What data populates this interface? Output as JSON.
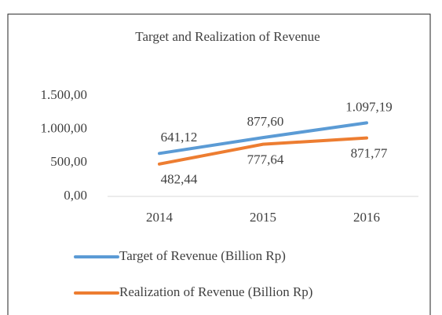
{
  "chart_data": {
    "type": "line",
    "title": "Target and Realization of Revenue",
    "categories": [
      "2014",
      "2015",
      "2016"
    ],
    "series": [
      {
        "name": "Target of Revenue (Billion Rp)",
        "color": "#5b9bd5",
        "values": [
          641.12,
          877.6,
          1097.19
        ],
        "value_labels": [
          "641,12",
          "877,60",
          "1.097,19"
        ]
      },
      {
        "name": "Realization of Revenue (Billion Rp)",
        "color": "#ed7d31",
        "values": [
          482.44,
          777.64,
          871.77
        ],
        "value_labels": [
          "482,44",
          "777,64",
          "871,77"
        ]
      }
    ],
    "ylim": [
      0,
      1500
    ],
    "yticks": [
      {
        "value": 0,
        "label": "0,00"
      },
      {
        "value": 500,
        "label": "500,00"
      },
      {
        "value": 1000,
        "label": "1.000,00"
      },
      {
        "value": 1500,
        "label": "1.500,00"
      }
    ],
    "grid": false,
    "legend": "bottom"
  }
}
